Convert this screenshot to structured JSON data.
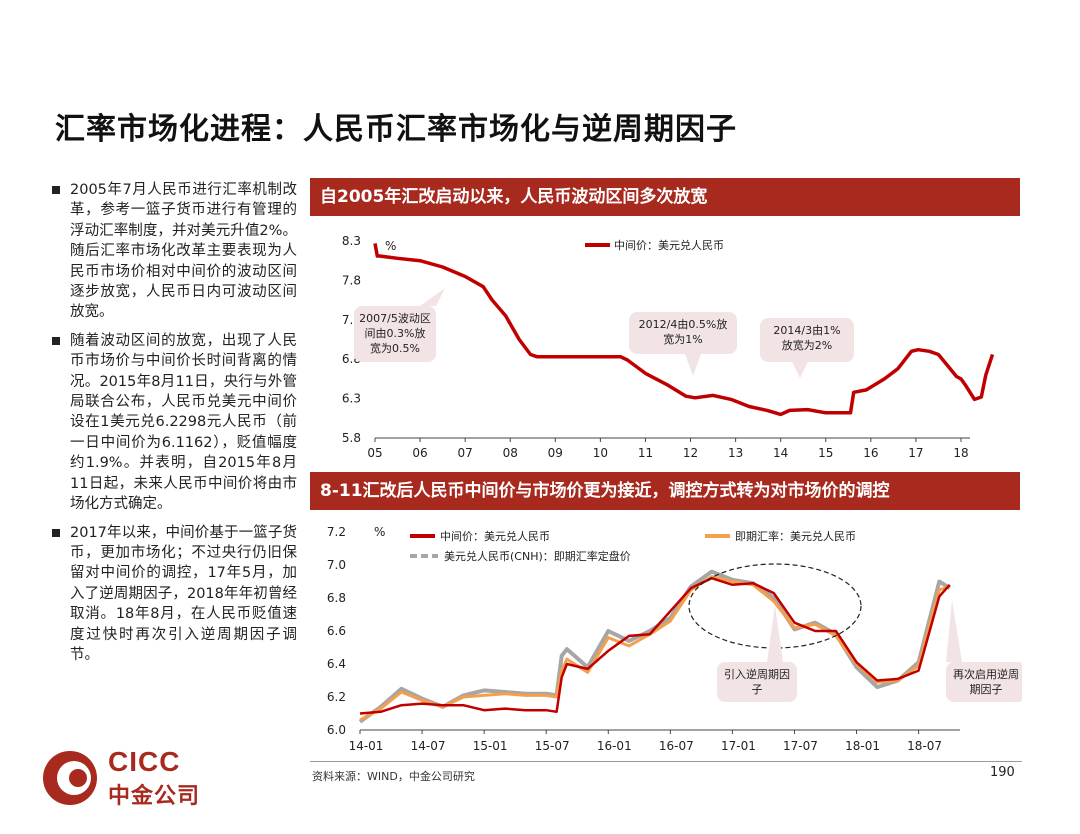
{
  "title": "汇率市场化进程：人民币汇率市场化与逆周期因子",
  "bullets": [
    "2005年7月人民币进行汇率机制改革，参考一篮子货币进行有管理的浮动汇率制度，并对美元升值2%。随后汇率市场化改革主要表现为人民币市场价相对中间价的波动区间逐步放宽，人民币日内可波动区间放宽。",
    "随着波动区间的放宽，出现了人民币市场价与中间价长时间背离的情况。2015年8月11日，央行与外管局联合公布，人民币兑美元中间价设在1美元兑6.2298元人民币（前一日中间价为6.1162），贬值幅度约1.9%。并表明，自2015年8月11日起，未来人民币中间价将由市场化方式确定。",
    "2017年以来，中间价基于一篮子货币，更加市场化；不过央行仍旧保留对中间价的调控，17年5月，加入了逆周期因子，2018年年初曾经取消。18年8月，在人民币贬值速度过快时再次引入逆周期因子调节。"
  ],
  "panel1_title": "自2005年汇改启动以来，人民币波动区间多次放宽",
  "panel2_title": "8-11汇改后人民币中间价与市场价更为接近，调控方式转为对市场价的调控",
  "source": "资料来源：WIND，中金公司研究",
  "page_number": "190",
  "logo": {
    "text_en": "CICC",
    "text_cn": "中金公司"
  },
  "colors": {
    "accent": "#a82a1f",
    "series_mid": "#c00000",
    "series_spot": "#f4a04a",
    "series_cnh": "#a6a6a6",
    "callout_fill": "#f2e4e4"
  },
  "chart_data": [
    {
      "type": "line",
      "unit_label": "%",
      "x_tick_labels": [
        "05",
        "06",
        "07",
        "08",
        "09",
        "10",
        "11",
        "12",
        "13",
        "14",
        "15",
        "16",
        "17",
        "18"
      ],
      "xlim": [
        2005,
        2018.2
      ],
      "ylim": [
        5.8,
        8.3
      ],
      "y_ticks": [
        "8.3",
        "7.8",
        "7.3",
        "6.8",
        "6.3",
        "5.8"
      ],
      "grid": false,
      "legend_position": "top-right",
      "series": [
        {
          "name": "中间价：美元兑人民币",
          "x": [
            2005.0,
            2005.05,
            2005.1,
            2005.5,
            2006.0,
            2006.5,
            2007.0,
            2007.4,
            2007.6,
            2007.9,
            2008.2,
            2008.45,
            2008.6,
            2009.0,
            2009.5,
            2010.0,
            2010.45,
            2010.6,
            2011.0,
            2011.5,
            2011.9,
            2012.1,
            2012.5,
            2012.9,
            2013.3,
            2013.7,
            2014.0,
            2014.2,
            2014.6,
            2015.0,
            2015.55,
            2015.62,
            2015.9,
            2016.3,
            2016.6,
            2016.9,
            2017.05,
            2017.3,
            2017.5,
            2017.7,
            2017.9,
            2018.0,
            2018.1,
            2018.3,
            2018.45,
            2018.55,
            2018.7
          ],
          "y": [
            8.27,
            8.11,
            8.11,
            8.08,
            8.05,
            7.97,
            7.85,
            7.72,
            7.55,
            7.35,
            7.05,
            6.86,
            6.83,
            6.83,
            6.83,
            6.83,
            6.83,
            6.79,
            6.62,
            6.47,
            6.33,
            6.31,
            6.34,
            6.29,
            6.2,
            6.15,
            6.1,
            6.15,
            6.16,
            6.12,
            6.12,
            6.38,
            6.41,
            6.55,
            6.68,
            6.9,
            6.92,
            6.9,
            6.86,
            6.72,
            6.58,
            6.55,
            6.47,
            6.29,
            6.32,
            6.6,
            6.86
          ]
        }
      ],
      "annotations": [
        "2007/5波动区间由0.3%放宽为0.5%",
        "2012/4由0.5%放宽为1%",
        "2014/3由1%放宽为2%"
      ]
    },
    {
      "type": "line",
      "unit_label": "%",
      "x_tick_labels": [
        "14-01",
        "14-07",
        "15-01",
        "15-07",
        "16-01",
        "16-07",
        "17-01",
        "17-07",
        "18-01",
        "18-07"
      ],
      "xlim": [
        0,
        58
      ],
      "ylim": [
        6.0,
        7.2
      ],
      "y_ticks": [
        "7.2",
        "7.0",
        "6.8",
        "6.6",
        "6.4",
        "6.2",
        "6.0"
      ],
      "grid": false,
      "legend_position": "top",
      "series": [
        {
          "name": "中间价：美元兑人民币",
          "x": [
            0,
            2,
            4,
            6,
            8,
            10,
            12,
            14,
            16,
            18,
            19,
            19.5,
            20,
            22,
            24,
            26,
            28,
            30,
            32,
            34,
            36,
            38,
            40,
            42,
            44,
            46,
            48,
            50,
            52,
            54,
            56,
            57
          ],
          "y": [
            6.1,
            6.11,
            6.15,
            6.16,
            6.15,
            6.15,
            6.12,
            6.13,
            6.12,
            6.12,
            6.11,
            6.32,
            6.4,
            6.37,
            6.48,
            6.57,
            6.58,
            6.72,
            6.86,
            6.92,
            6.88,
            6.89,
            6.83,
            6.65,
            6.6,
            6.6,
            6.41,
            6.3,
            6.31,
            6.36,
            6.81,
            6.88
          ]
        },
        {
          "name": "即期汇率：美元兑人民币",
          "x": [
            0,
            2,
            4,
            6,
            8,
            10,
            12,
            14,
            16,
            18,
            19,
            19.5,
            20,
            22,
            24,
            26,
            28,
            30,
            32,
            34,
            36,
            38,
            40,
            42,
            44,
            46,
            48,
            50,
            52,
            54,
            56,
            57
          ],
          "y": [
            6.06,
            6.13,
            6.23,
            6.18,
            6.14,
            6.2,
            6.21,
            6.22,
            6.21,
            6.21,
            6.2,
            6.36,
            6.43,
            6.35,
            6.56,
            6.51,
            6.58,
            6.66,
            6.85,
            6.93,
            6.9,
            6.88,
            6.78,
            6.62,
            6.64,
            6.57,
            6.4,
            6.29,
            6.3,
            6.39,
            6.85,
            6.87
          ]
        },
        {
          "name": "美元兑人民币(CNH)：即期汇率定盘价",
          "x": [
            0,
            2,
            4,
            6,
            8,
            10,
            12,
            14,
            16,
            18,
            19,
            19.5,
            20,
            22,
            24,
            26,
            28,
            30,
            32,
            34,
            36,
            38,
            40,
            42,
            44,
            46,
            48,
            50,
            52,
            54,
            56,
            57
          ],
          "y": [
            6.05,
            6.14,
            6.25,
            6.19,
            6.14,
            6.21,
            6.24,
            6.23,
            6.22,
            6.22,
            6.21,
            6.45,
            6.49,
            6.38,
            6.6,
            6.54,
            6.6,
            6.68,
            6.87,
            6.96,
            6.91,
            6.89,
            6.8,
            6.61,
            6.65,
            6.58,
            6.38,
            6.26,
            6.3,
            6.41,
            6.9,
            6.86
          ]
        }
      ],
      "annotations": [
        "引入逆周期因子",
        "再次启用逆周期因子"
      ]
    }
  ]
}
